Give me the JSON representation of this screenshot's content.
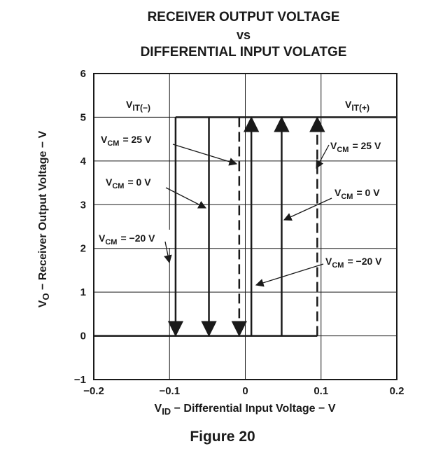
{
  "chart_data": {
    "type": "line",
    "title_lines": [
      "RECEIVER OUTPUT VOLTAGE",
      "vs",
      "DIFFERENTIAL INPUT VOLATGE"
    ],
    "xlabel": {
      "main": "V",
      "sub": "ID",
      "rest": " − Differential Input Voltage − V"
    },
    "ylabel": {
      "main": "V",
      "sub": "O",
      "rest": " − Receiver Output Voltage − V"
    },
    "xlim": [
      -0.2,
      0.2
    ],
    "ylim": [
      -1,
      6
    ],
    "x_ticks": [
      -0.2,
      -0.1,
      0,
      0.1,
      0.2
    ],
    "x_tick_labels": [
      "−0.2",
      "−0.1",
      "0",
      "0.1",
      "0.2"
    ],
    "y_ticks": [
      -1,
      0,
      1,
      2,
      3,
      4,
      5,
      6
    ],
    "y_tick_labels": [
      "−1",
      "0",
      "1",
      "2",
      "3",
      "4",
      "5",
      "6"
    ],
    "grid": true,
    "output_high": 5,
    "output_low": 0,
    "series": [
      {
        "name": "VCM = 25 V",
        "style": "dashed",
        "x_low_to_high": 0.095,
        "x_high_to_low": -0.008
      },
      {
        "name": "VCM = 0 V",
        "style": "solid",
        "x_low_to_high": 0.048,
        "x_high_to_low": -0.048
      },
      {
        "name": "VCM = −20 V",
        "style": "solid",
        "x_low_to_high": 0.008,
        "x_high_to_low": -0.092
      }
    ],
    "threshold_labels": [
      {
        "main": "V",
        "sub": "IT(−)"
      },
      {
        "main": "V",
        "sub": "IT(+)"
      }
    ],
    "annotations": [
      {
        "main": "V",
        "sub": "CM",
        "value": "= 25 V"
      },
      {
        "main": "V",
        "sub": "CM",
        "value": "= 0 V"
      },
      {
        "main": "V",
        "sub": "CM",
        "value": "= −20 V"
      },
      {
        "main": "V",
        "sub": "CM",
        "value": "= 25 V"
      },
      {
        "main": "V",
        "sub": "CM",
        "value": "= 0 V"
      },
      {
        "main": "V",
        "sub": "CM",
        "value": "= −20 V"
      }
    ]
  },
  "caption": "Figure 20"
}
